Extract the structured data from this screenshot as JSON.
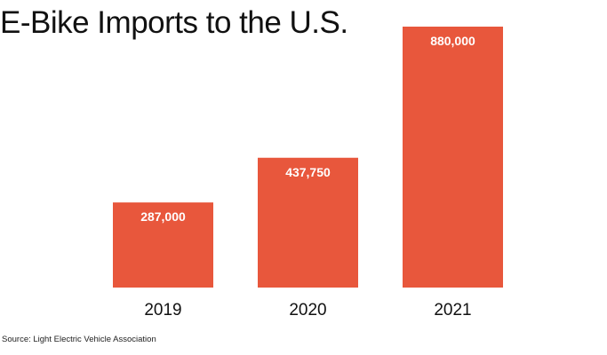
{
  "chart_data": {
    "type": "bar",
    "title": "E-Bike Imports to the U.S.",
    "categories": [
      "2019",
      "2020",
      "2021"
    ],
    "values": [
      287000,
      437750,
      880000
    ],
    "data_labels": [
      "287,000",
      "437,750",
      "880,000"
    ],
    "xlabel": "",
    "ylabel": "",
    "ylim": [
      0,
      880000
    ],
    "grid": false,
    "bar_color": "#E8573C",
    "source": "Source: Light Electric Vehicle Association"
  }
}
